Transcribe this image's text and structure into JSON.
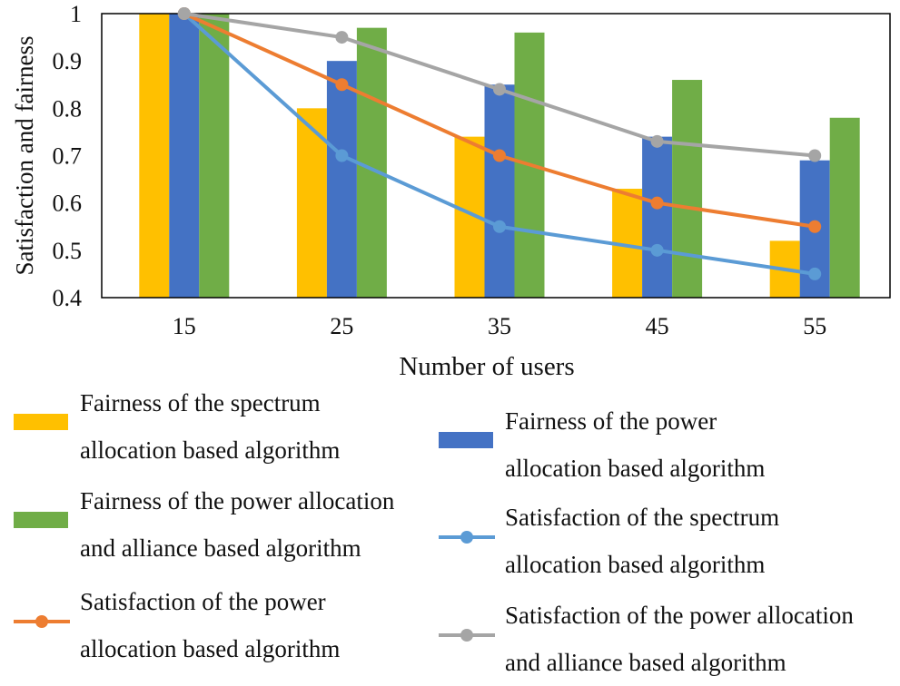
{
  "chart_data": {
    "type": "bar",
    "title": "",
    "xlabel": "Number of users",
    "ylabel": "Satisfaction and fairness",
    "ylim": [
      0.4,
      1.0
    ],
    "yticks": [
      0.4,
      0.5,
      0.6,
      0.7,
      0.8,
      0.9,
      1
    ],
    "ytick_labels": [
      "0.4",
      "0.5",
      "0.6",
      "0.7",
      "0.8",
      "0.9",
      "1"
    ],
    "categories": [
      "15",
      "25",
      "35",
      "45",
      "55"
    ],
    "series": [
      {
        "name": "Fairness of the spectrum allocation based algorithm",
        "kind": "bar",
        "color": "#FFC000",
        "values": [
          1.0,
          0.8,
          0.74,
          0.63,
          0.52
        ],
        "legend_lines": [
          "Fairness of the spectrum",
          "allocation based algorithm"
        ]
      },
      {
        "name": "Fairness of the power allocation based algorithm",
        "kind": "bar",
        "color": "#4472C4",
        "values": [
          1.0,
          0.9,
          0.85,
          0.74,
          0.69
        ],
        "legend_lines": [
          "Fairness of the power",
          "allocation based algorithm"
        ]
      },
      {
        "name": "Fairness of the power allocation and alliance based algorithm",
        "kind": "bar",
        "color": "#70AD47",
        "values": [
          1.0,
          0.97,
          0.96,
          0.86,
          0.78
        ],
        "legend_lines": [
          "Fairness of the power allocation",
          "and alliance based algorithm"
        ]
      },
      {
        "name": "Satisfaction of the spectrum allocation based algorithm",
        "kind": "line",
        "color": "#5B9BD5",
        "values": [
          1.0,
          0.7,
          0.55,
          0.5,
          0.45
        ],
        "legend_lines": [
          "Satisfaction of the spectrum",
          "allocation based algorithm"
        ]
      },
      {
        "name": "Satisfaction of the power allocation based algorithm",
        "kind": "line",
        "color": "#ED7D31",
        "values": [
          1.0,
          0.85,
          0.7,
          0.6,
          0.55
        ],
        "legend_lines": [
          "Satisfaction of the power",
          "allocation based algorithm"
        ]
      },
      {
        "name": "Satisfaction of the power allocation and alliance based algorithm",
        "kind": "line",
        "color": "#A5A5A5",
        "values": [
          1.0,
          0.95,
          0.84,
          0.73,
          0.7
        ],
        "legend_lines": [
          "Satisfaction of the power allocation",
          "and alliance based algorithm"
        ]
      }
    ],
    "legend_placement": "bottom"
  }
}
